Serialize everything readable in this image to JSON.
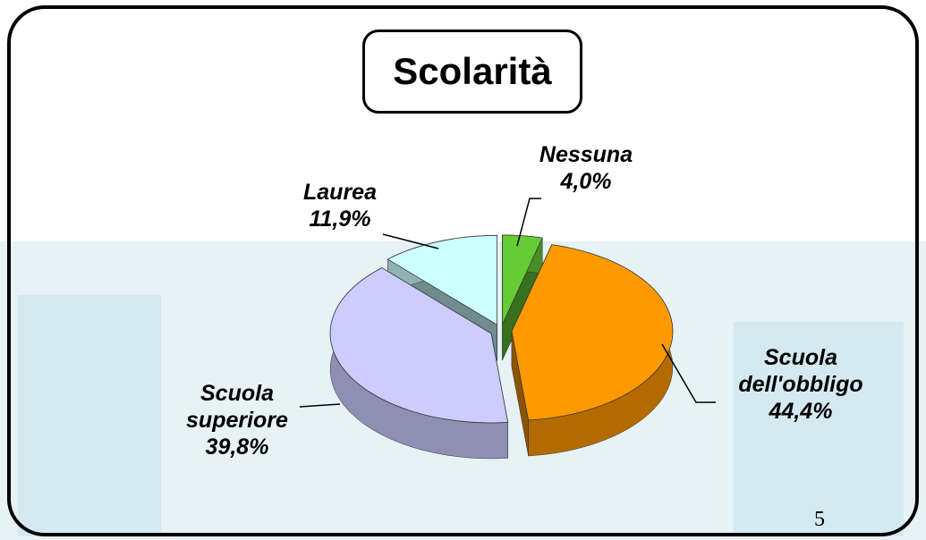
{
  "chart_data": {
    "type": "pie",
    "title": "Scolarità",
    "categories": [
      "Nessuna",
      "Scuola dell'obbligo",
      "Scuola superiore",
      "Laurea"
    ],
    "values": [
      4.0,
      44.4,
      39.8,
      11.9
    ],
    "value_labels": [
      "4,0%",
      "44,4%",
      "39,8%",
      "11,9%"
    ],
    "colors": [
      "#66cc33",
      "#ff9900",
      "#ccccff",
      "#ccffff"
    ]
  },
  "slide_number": "5"
}
